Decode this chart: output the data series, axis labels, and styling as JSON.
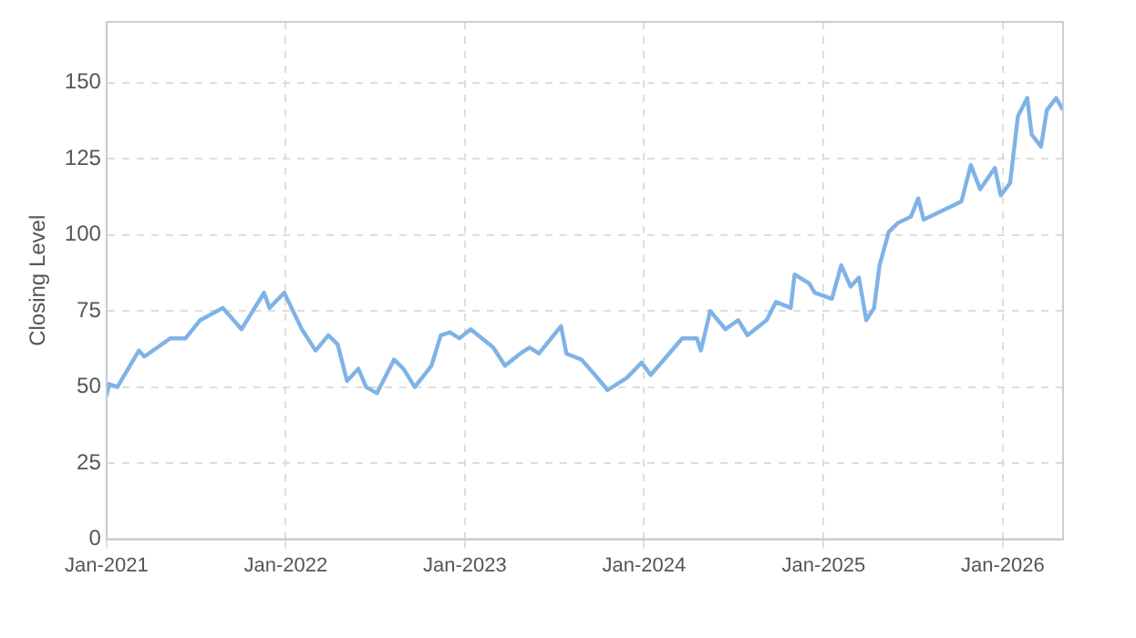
{
  "chart_data": {
    "type": "line",
    "ylabel": "Closing Level",
    "grid": true,
    "legend": false,
    "marker": "none",
    "line_style": "solid",
    "xlim": [
      "2021-01-01",
      "2026-05-04"
    ],
    "ylim": [
      0,
      170
    ],
    "yticks": [
      0,
      25,
      50,
      75,
      100,
      125,
      150
    ],
    "xticks": [
      {
        "value": "2021-01-01",
        "label": "Jan-2021"
      },
      {
        "value": "2022-01-01",
        "label": "Jan-2022"
      },
      {
        "value": "2023-01-01",
        "label": "Jan-2023"
      },
      {
        "value": "2024-01-01",
        "label": "Jan-2024"
      },
      {
        "value": "2025-01-01",
        "label": "Jan-2025"
      },
      {
        "value": "2026-01-01",
        "label": "Jan-2026"
      }
    ],
    "x": [
      "2021-01-01",
      "2021-01-06",
      "2021-01-23",
      "2021-03-08",
      "2021-03-19",
      "2021-05-11",
      "2021-06-11",
      "2021-07-11",
      "2021-08-26",
      "2021-10-03",
      "2021-11-18",
      "2021-11-29",
      "2021-12-29",
      "2022-02-03",
      "2022-03-03",
      "2022-03-29",
      "2022-04-17",
      "2022-05-06",
      "2022-05-29",
      "2022-06-14",
      "2022-07-06",
      "2022-08-10",
      "2022-08-29",
      "2022-09-21",
      "2022-10-25",
      "2022-11-13",
      "2022-12-02",
      "2022-12-21",
      "2023-01-13",
      "2023-02-28",
      "2023-03-24",
      "2023-04-24",
      "2023-05-13",
      "2023-06-01",
      "2023-07-16",
      "2023-07-27",
      "2023-08-27",
      "2023-09-23",
      "2023-10-19",
      "2023-11-27",
      "2023-12-27",
      "2024-01-15",
      "2024-03-19",
      "2024-04-18",
      "2024-04-26",
      "2024-05-15",
      "2024-06-15",
      "2024-07-11",
      "2024-07-30",
      "2024-09-07",
      "2024-09-26",
      "2024-10-26",
      "2024-11-03",
      "2024-12-03",
      "2024-12-14",
      "2025-01-18",
      "2025-02-06",
      "2025-02-25",
      "2025-03-14",
      "2025-03-29",
      "2025-04-14",
      "2025-04-25",
      "2025-05-14",
      "2025-06-02",
      "2025-06-28",
      "2025-07-13",
      "2025-07-24",
      "2025-09-13",
      "2025-10-09",
      "2025-10-28",
      "2025-11-16",
      "2025-12-16",
      "2025-12-28",
      "2026-01-16",
      "2026-02-01",
      "2026-02-20",
      "2026-03-01",
      "2026-03-20",
      "2026-04-01",
      "2026-04-20",
      "2026-05-04"
    ],
    "series": [
      {
        "color": "#7fb3e6",
        "values": [
          47,
          51,
          50,
          62,
          60,
          66,
          66,
          72,
          76,
          69,
          81,
          76,
          81,
          69,
          62,
          67,
          64,
          52,
          56,
          50,
          48,
          59,
          56,
          50,
          57,
          67,
          68,
          66,
          69,
          63,
          57,
          61,
          63,
          61,
          70,
          61,
          59,
          54,
          49,
          53,
          58,
          54,
          66,
          66,
          62,
          75,
          69,
          72,
          67,
          72,
          78,
          76,
          87,
          84,
          81,
          79,
          90,
          83,
          86,
          72,
          76,
          90,
          101,
          104,
          106,
          112,
          105,
          109,
          111,
          123,
          115,
          122,
          113,
          117,
          139,
          145,
          133,
          129,
          141,
          145,
          141
        ]
      }
    ]
  }
}
